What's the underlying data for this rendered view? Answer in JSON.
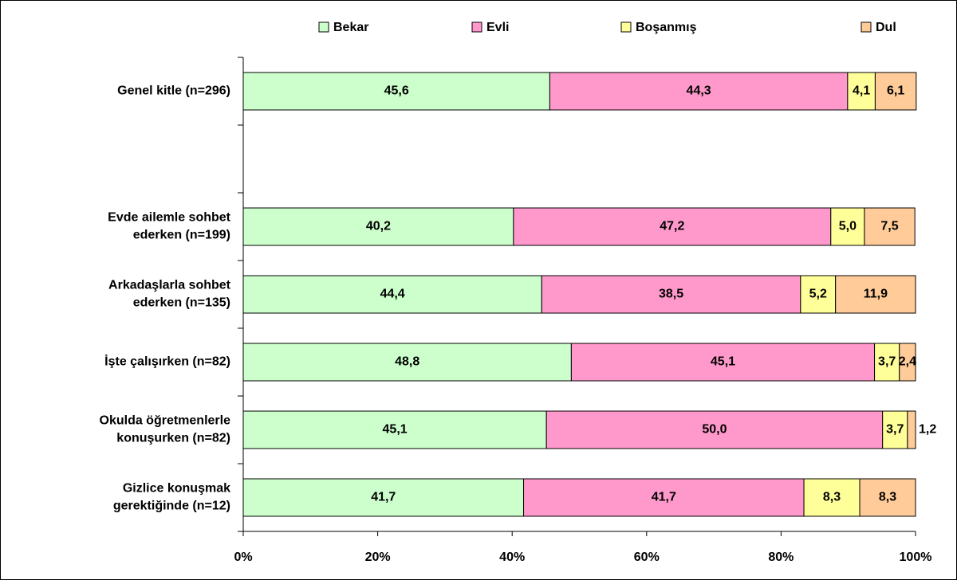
{
  "chart_data": {
    "type": "stacked-bar-horizontal",
    "orientation": "horizontal",
    "categories": [
      "Genel kitle (n=296)",
      null,
      "Evde ailemle sohbet\nederken (n=199)",
      "Arkadaşlarla sohbet\nederken (n=135)",
      "İşte çalışırken (n=82)",
      "Okulda öğretmenlerle\nkonuşurken (n=82)",
      "Gizlice konuşmak\ngerektiğinde (n=12)"
    ],
    "series": [
      {
        "name": "Bekar",
        "color": "#ccffcc",
        "values": [
          45.6,
          null,
          40.2,
          44.4,
          48.8,
          45.1,
          41.7
        ],
        "value_labels": [
          "45,6",
          null,
          "40,2",
          "44,4",
          "48,8",
          "45,1",
          "41,7"
        ]
      },
      {
        "name": "Evli",
        "color": "#ff99cc",
        "values": [
          44.3,
          null,
          47.2,
          38.5,
          45.1,
          50.0,
          41.7
        ],
        "value_labels": [
          "44,3",
          null,
          "47,2",
          "38,5",
          "45,1",
          "50,0",
          "41,7"
        ]
      },
      {
        "name": "Boşanmış",
        "color": "#ffff99",
        "values": [
          4.1,
          null,
          5.0,
          5.2,
          3.7,
          3.7,
          8.3
        ],
        "value_labels": [
          "4,1",
          null,
          "5,0",
          "5,2",
          "3,7",
          "3,7",
          "8,3"
        ]
      },
      {
        "name": "Dul",
        "color": "#ffcc99",
        "values": [
          6.1,
          null,
          7.5,
          11.9,
          2.4,
          1.2,
          8.3
        ],
        "value_labels": [
          "6,1",
          null,
          "7,5",
          "11,9",
          "2,4",
          "1,2",
          "8,3"
        ]
      }
    ],
    "xlim": [
      0,
      100
    ],
    "xticks": [
      {
        "value": 0,
        "label": "0%"
      },
      {
        "value": 20,
        "label": "20%"
      },
      {
        "value": 40,
        "label": "40%"
      },
      {
        "value": 60,
        "label": "60%"
      },
      {
        "value": 80,
        "label": "80%"
      },
      {
        "value": 100,
        "label": "100%"
      }
    ],
    "legend": "top",
    "grid": false
  }
}
